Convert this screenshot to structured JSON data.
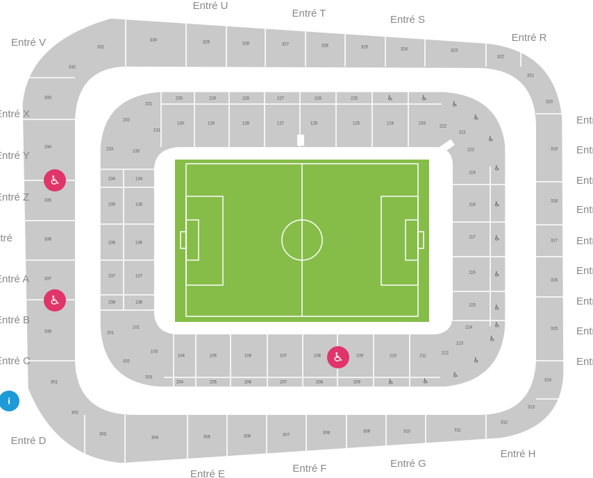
{
  "colors": {
    "seat": "#c9c9c9",
    "pitch": "#86bd49",
    "accessible_marker": "#e0356a",
    "info_marker": "#1e9bd7",
    "gate_text": "#888888"
  },
  "gates": {
    "U": "Entré U",
    "T": "Entré T",
    "S": "Entré S",
    "R": "Entré R",
    "V": "Entré V",
    "X": "Entré X",
    "Y": "Entré Y",
    "Z": "Entré Z",
    "W": "Entré",
    "A": "Entré A",
    "B": "Entré B",
    "C": "Entré C",
    "D": "Entré D",
    "E": "Entré E",
    "F": "Entré F",
    "G": "Entré G",
    "H": "Entré H",
    "right": [
      "Entré",
      "Entré",
      "Entré",
      "Entré",
      "Entré",
      "Entré",
      "Entré",
      "Entré",
      "Entré"
    ]
  },
  "info_marker": {
    "icon": "info-icon",
    "label": "i"
  },
  "accessible_icon": "wheelchair-icon",
  "sections": {
    "upper_top": [
      "331",
      "330",
      "329",
      "328",
      "327",
      "326",
      "325",
      "324",
      "323",
      "322",
      "321",
      "320"
    ],
    "upper_left": [
      "332",
      "333",
      "334",
      "335",
      "336",
      "337",
      "338"
    ],
    "upper_right": [
      "319",
      "318",
      "317",
      "316",
      "315",
      "314",
      "313"
    ],
    "upper_bottom": [
      "301",
      "302",
      "303",
      "304",
      "305",
      "306",
      "307",
      "308",
      "309",
      "310",
      "311",
      "312"
    ],
    "lower_top": [
      "230",
      "229",
      "228",
      "227",
      "226",
      "225"
    ],
    "lower_top_inner": [
      "130",
      "129",
      "128",
      "127",
      "126",
      "125",
      "124",
      "233"
    ],
    "lower_left_outer": [
      "234",
      "235",
      "236",
      "237",
      "238"
    ],
    "lower_left_inner": [
      "134",
      "135",
      "136",
      "137",
      "138"
    ],
    "corner_nw": [
      "231",
      "232",
      "233",
      "131",
      "133"
    ],
    "corner_ne": [
      "222",
      "221",
      "222"
    ],
    "lower_right": [
      "119",
      "118",
      "117",
      "116",
      "115"
    ],
    "lower_bottom_inner": [
      "104",
      "105",
      "106",
      "107",
      "108",
      "109",
      "210",
      "211"
    ],
    "lower_bottom_outer": [
      "204",
      "205",
      "206",
      "207",
      "208",
      "209"
    ],
    "corner_sw": [
      "101",
      "201",
      "202",
      "103",
      "203"
    ],
    "corner_se": [
      "214",
      "213",
      "212"
    ]
  }
}
